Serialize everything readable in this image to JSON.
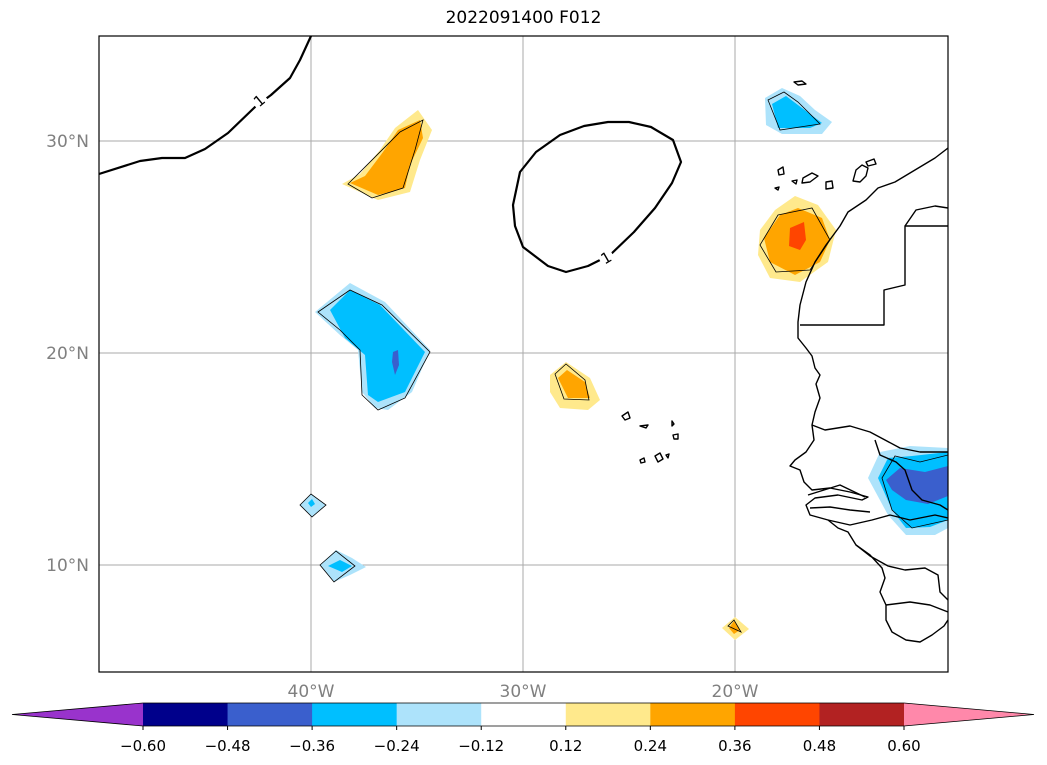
{
  "title": "2022091400 F012",
  "lat_labels": [
    "30°N",
    "20°N",
    "10°N"
  ],
  "lon_labels": [
    "40°W",
    "30°W",
    "20°W"
  ],
  "contour_labels": [
    "1",
    "1"
  ],
  "colorbar": {
    "ticks": [
      "−0.60",
      "−0.48",
      "−0.36",
      "−0.24",
      "−0.12",
      "0.12",
      "0.24",
      "0.36",
      "0.48",
      "0.60"
    ],
    "colors": [
      "#9933cc",
      "#00008b",
      "#3a5fcd",
      "#00bfff",
      "#ade3fb",
      "#ffffff",
      "#ffe98c",
      "#ffa500",
      "#ff4500",
      "#b22222",
      "#ff88aa"
    ]
  },
  "chart_data": {
    "type": "heatmap",
    "title": "2022091400 F012",
    "extent": {
      "lon": [
        -50,
        -10
      ],
      "lat": [
        5,
        35
      ]
    },
    "grid": true,
    "levels": [
      -0.6,
      -0.48,
      -0.36,
      -0.24,
      -0.12,
      0.12,
      0.24,
      0.36,
      0.48,
      0.6
    ],
    "colorbar": "horizontal-bottom"
  }
}
